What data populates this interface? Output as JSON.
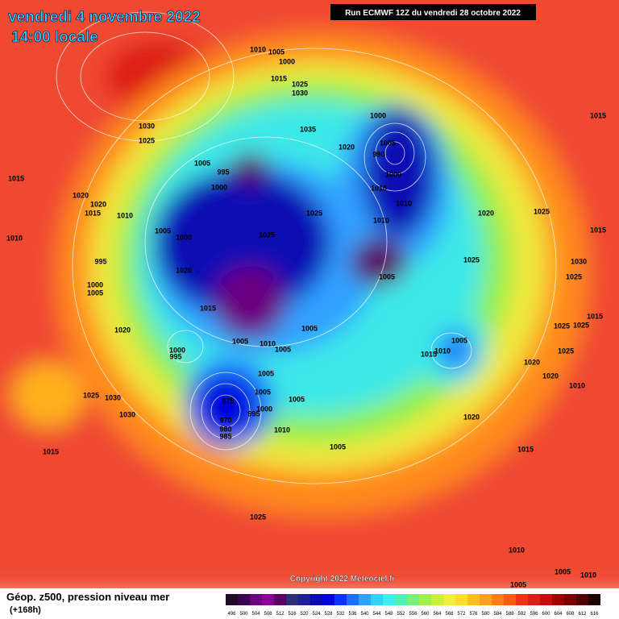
{
  "header": {
    "date": "vendredi 4 novembre 2022",
    "time": "14:00 locale"
  },
  "run_info": "Run ECMWF 12Z du vendredi 28 octobre 2022",
  "copyright": "Copyright 2022 Meteociel.fr",
  "legend": {
    "title": "Géop. z500, pression niveau mer",
    "subtitle": "(+168h)",
    "labels": [
      "496",
      "500",
      "504",
      "508",
      "512",
      "516",
      "520",
      "524",
      "528",
      "532",
      "536",
      "540",
      "544",
      "548",
      "552",
      "556",
      "560",
      "564",
      "568",
      "572",
      "576",
      "580",
      "584",
      "588",
      "592",
      "596",
      "600",
      "604",
      "608",
      "612",
      "616"
    ],
    "colors": [
      "#1e0a28",
      "#3c0050",
      "#6a0080",
      "#8c0096",
      "#5a0064",
      "#2d2d78",
      "#1e1e96",
      "#0a0ab4",
      "#0000dc",
      "#0a32ff",
      "#1e6eff",
      "#32a0ff",
      "#32d2ff",
      "#3cf0f0",
      "#50f0b4",
      "#78f078",
      "#a0f050",
      "#c8f03c",
      "#f0f03c",
      "#ffdc28",
      "#ffbe1e",
      "#ffa01e",
      "#ff7d14",
      "#ff5a14",
      "#f03214",
      "#dc1e14",
      "#c80a0a",
      "#a00000",
      "#780000",
      "#500000",
      "#1e0000"
    ]
  },
  "map": {
    "pressure_labels": [
      "1010",
      "1005",
      "1000",
      "1015",
      "1025",
      "1030",
      "1035",
      "1030",
      "1025",
      "1000",
      "1005",
      "990",
      "1000",
      "1020",
      "1015",
      "1015",
      "1020",
      "1020",
      "1015",
      "1010",
      "1005",
      "995",
      "1000",
      "1005",
      "1000",
      "1025",
      "1025",
      "1010",
      "1010",
      "1010",
      "1020",
      "1025",
      "1015",
      "1010",
      "995",
      "1020",
      "1025",
      "1030",
      "1025",
      "1005",
      "1000",
      "1005",
      "1015",
      "1015",
      "1025",
      "1025",
      "1020",
      "1005",
      "1005",
      "1010",
      "1005",
      "1000",
      "995",
      "1010",
      "1005",
      "1015",
      "1025",
      "1020",
      "1005",
      "1020",
      "1010",
      "1025",
      "1030",
      "975",
      "1005",
      "1005",
      "1000",
      "995",
      "1030",
      "970",
      "1020",
      "980",
      "985",
      "1010",
      "1005",
      "1015",
      "1015",
      "1025",
      "1010",
      "1005",
      "1010",
      "1005"
    ]
  }
}
